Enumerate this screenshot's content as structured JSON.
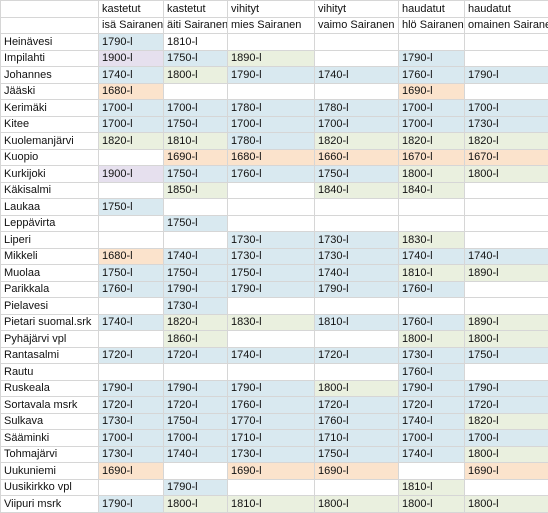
{
  "header": {
    "row1": [
      "",
      "kastetut",
      "kastetut",
      "vihityt",
      "vihityt",
      "haudatut",
      "haudatut"
    ],
    "row2": [
      "",
      "isä Sairanen",
      "äiti Sairanen",
      "mies Sairanen",
      "vaimo Sairanen",
      "hlö Sairanen",
      "omainen Sairanen"
    ]
  },
  "rows": [
    {
      "name": "Heinävesi",
      "cells": [
        "1790-l",
        "1810-l",
        "",
        "",
        "",
        ""
      ],
      "colors": [
        "b",
        "w",
        "w",
        "w",
        "w",
        "w"
      ]
    },
    {
      "name": "Impilahti",
      "cells": [
        "1900-l",
        "1750-l",
        "1890-l",
        "",
        "1790-l",
        ""
      ],
      "colors": [
        "p",
        "b",
        "g",
        "w",
        "b",
        "w"
      ]
    },
    {
      "name": "Johannes",
      "cells": [
        "1740-l",
        "1800-l",
        "1790-l",
        "1740-l",
        "1760-l",
        "1790-l"
      ],
      "colors": [
        "b",
        "g",
        "b",
        "b",
        "b",
        "b"
      ]
    },
    {
      "name": "Jääski",
      "cells": [
        "1680-l",
        "",
        "",
        "",
        "1690-l",
        ""
      ],
      "colors": [
        "o",
        "w",
        "w",
        "w",
        "o",
        "w"
      ]
    },
    {
      "name": "Kerimäki",
      "cells": [
        "1700-l",
        "1700-l",
        "1780-l",
        "1780-l",
        "1700-l",
        "1700-l"
      ],
      "colors": [
        "b",
        "b",
        "b",
        "b",
        "b",
        "b"
      ]
    },
    {
      "name": "Kitee",
      "cells": [
        "1700-l",
        "1750-l",
        "1700-l",
        "1700-l",
        "1700-l",
        "1730-l"
      ],
      "colors": [
        "b",
        "b",
        "b",
        "b",
        "b",
        "b"
      ]
    },
    {
      "name": "Kuolemanjärvi",
      "cells": [
        "1820-l",
        "1810-l",
        "1780-l",
        "1820-l",
        "1820-l",
        "1820-l"
      ],
      "colors": [
        "g",
        "g",
        "b",
        "g",
        "g",
        "g"
      ]
    },
    {
      "name": "Kuopio",
      "cells": [
        "",
        "1690-l",
        "1680-l",
        "1660-l",
        "1670-l",
        "1670-l"
      ],
      "colors": [
        "w",
        "o",
        "o",
        "o",
        "o",
        "o"
      ]
    },
    {
      "name": "Kurkijoki",
      "cells": [
        "1900-l",
        "1750-l",
        "1760-l",
        "1750-l",
        "1800-l",
        "1800-l"
      ],
      "colors": [
        "p",
        "b",
        "b",
        "b",
        "g",
        "g"
      ]
    },
    {
      "name": "Käkisalmi",
      "cells": [
        "",
        "1850-l",
        "",
        "1840-l",
        "1840-l",
        ""
      ],
      "colors": [
        "w",
        "g",
        "w",
        "g",
        "g",
        "w"
      ]
    },
    {
      "name": "Laukaa",
      "cells": [
        "1750-l",
        "",
        "",
        "",
        "",
        ""
      ],
      "colors": [
        "b",
        "w",
        "w",
        "w",
        "w",
        "w"
      ]
    },
    {
      "name": "Leppävirta",
      "cells": [
        "",
        "1750-l",
        "",
        "",
        "",
        ""
      ],
      "colors": [
        "w",
        "b",
        "w",
        "w",
        "w",
        "w"
      ]
    },
    {
      "name": "Liperi",
      "cells": [
        "",
        "",
        "1730-l",
        "1730-l",
        "1830-l",
        ""
      ],
      "colors": [
        "w",
        "w",
        "b",
        "b",
        "g",
        "w"
      ]
    },
    {
      "name": "Mikkeli",
      "cells": [
        "1680-l",
        "1740-l",
        "1730-l",
        "1730-l",
        "1740-l",
        "1740-l"
      ],
      "colors": [
        "o",
        "b",
        "b",
        "b",
        "b",
        "b"
      ]
    },
    {
      "name": "Muolaa",
      "cells": [
        "1750-l",
        "1750-l",
        "1750-l",
        "1740-l",
        "1810-l",
        "1890-l"
      ],
      "colors": [
        "b",
        "b",
        "b",
        "b",
        "g",
        "g"
      ]
    },
    {
      "name": "Parikkala",
      "cells": [
        "1760-l",
        "1790-l",
        "1790-l",
        "1790-l",
        "1760-l",
        ""
      ],
      "colors": [
        "b",
        "b",
        "b",
        "b",
        "b",
        "w"
      ]
    },
    {
      "name": "Pielavesi",
      "cells": [
        "",
        "1730-l",
        "",
        "",
        "",
        ""
      ],
      "colors": [
        "w",
        "b",
        "w",
        "w",
        "w",
        "w"
      ]
    },
    {
      "name": "Pietari suomal.srk",
      "cells": [
        "1740-l",
        "1820-l",
        "1830-l",
        "1810-l",
        "1760-l",
        "1890-l"
      ],
      "colors": [
        "b",
        "g",
        "g",
        "b",
        "b",
        "g"
      ]
    },
    {
      "name": "Pyhäjärvi vpl",
      "cells": [
        "",
        "1860-l",
        "",
        "",
        "1800-l",
        "1800-l"
      ],
      "colors": [
        "w",
        "g",
        "w",
        "w",
        "g",
        "g"
      ]
    },
    {
      "name": "Rantasalmi",
      "cells": [
        "1720-l",
        "1720-l",
        "1740-l",
        "1720-l",
        "1730-l",
        "1750-l"
      ],
      "colors": [
        "b",
        "b",
        "b",
        "b",
        "b",
        "b"
      ]
    },
    {
      "name": "Rautu",
      "cells": [
        "",
        "",
        "",
        "",
        "1760-l",
        ""
      ],
      "colors": [
        "w",
        "w",
        "w",
        "w",
        "b",
        "w"
      ]
    },
    {
      "name": "Ruskeala",
      "cells": [
        "1790-l",
        "1790-l",
        "1790-l",
        "1800-l",
        "1790-l",
        "1790-l"
      ],
      "colors": [
        "b",
        "b",
        "b",
        "g",
        "b",
        "b"
      ]
    },
    {
      "name": "Sortavala msrk",
      "cells": [
        "1720-l",
        "1720-l",
        "1760-l",
        "1720-l",
        "1720-l",
        "1720-l"
      ],
      "colors": [
        "b",
        "b",
        "b",
        "b",
        "b",
        "b"
      ]
    },
    {
      "name": "Sulkava",
      "cells": [
        "1730-l",
        "1750-l",
        "1770-l",
        "1760-l",
        "1740-l",
        "1820-l"
      ],
      "colors": [
        "b",
        "b",
        "b",
        "b",
        "b",
        "g"
      ]
    },
    {
      "name": "Sääminki",
      "cells": [
        "1700-l",
        "1700-l",
        "1710-l",
        "1710-l",
        "1700-l",
        "1700-l"
      ],
      "colors": [
        "b",
        "b",
        "b",
        "b",
        "b",
        "b"
      ]
    },
    {
      "name": "Tohmajärvi",
      "cells": [
        "1730-l",
        "1740-l",
        "1730-l",
        "1750-l",
        "1740-l",
        "1800-l"
      ],
      "colors": [
        "b",
        "b",
        "b",
        "b",
        "b",
        "g"
      ]
    },
    {
      "name": "Uukuniemi",
      "cells": [
        "1690-l",
        "",
        "1690-l",
        "1690-l",
        "",
        "1690-l"
      ],
      "colors": [
        "o",
        "w",
        "o",
        "o",
        "w",
        "o"
      ]
    },
    {
      "name": "Uusikirkko vpl",
      "cells": [
        "",
        "1790-l",
        "",
        "",
        "1810-l",
        ""
      ],
      "colors": [
        "w",
        "b",
        "w",
        "w",
        "g",
        "w"
      ]
    },
    {
      "name": "Viipuri msrk",
      "cells": [
        "1790-l",
        "1800-l",
        "1810-l",
        "1800-l",
        "1800-l",
        "1800-l"
      ],
      "colors": [
        "b",
        "g",
        "g",
        "g",
        "g",
        "g"
      ]
    }
  ],
  "palette": {
    "b": "#d9e9f0",
    "g": "#eaf0df",
    "o": "#fbe3cc",
    "p": "#e6e0ee",
    "w": "#ffffff"
  }
}
